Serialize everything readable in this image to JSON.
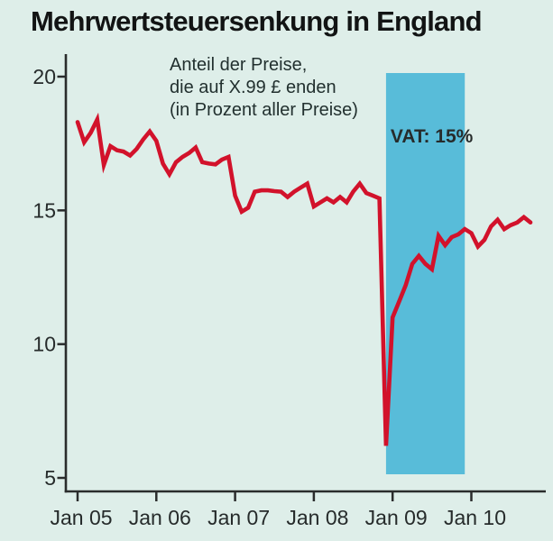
{
  "title": "Mehrwertsteuersenkung in England",
  "annotation": {
    "line1": "Anteil der Preise,",
    "line2": "die auf X.99 £ enden",
    "line3": "(in Prozent aller Preise)"
  },
  "colors": {
    "background": "#deeee9",
    "line": "#d2122b",
    "band": "#58bcd9",
    "axis": "#2a2c2c",
    "text": "#262b2b",
    "title_text": "#121414"
  },
  "chart_data": {
    "type": "line",
    "title": "Mehrwertsteuersenkung in England",
    "series_label": "Anteil der Preise, die auf X.99 £ enden (in Prozent aller Preise)",
    "x_start": "Jan 2005",
    "frequency": "monthly",
    "x_tick_labels": [
      "Jan 05",
      "Jan 06",
      "Jan 07",
      "Jan 08",
      "Jan 09",
      "Jan 10"
    ],
    "y_ticks": [
      5,
      10,
      15,
      20
    ],
    "ylim": [
      4.5,
      20.3
    ],
    "grid": false,
    "values": [
      18.3,
      17.55,
      17.9,
      18.4,
      16.7,
      17.4,
      17.25,
      17.2,
      17.05,
      17.3,
      17.65,
      17.95,
      17.6,
      16.75,
      16.35,
      16.8,
      17.0,
      17.15,
      17.35,
      16.8,
      16.75,
      16.72,
      16.9,
      17.0,
      15.55,
      14.95,
      15.1,
      15.7,
      15.75,
      15.75,
      15.72,
      15.7,
      15.5,
      15.7,
      15.85,
      16.0,
      15.15,
      15.3,
      15.45,
      15.3,
      15.5,
      15.3,
      15.7,
      16.0,
      15.65,
      15.55,
      15.45,
      6.2,
      11.0,
      11.6,
      12.2,
      13.0,
      13.3,
      13.0,
      12.8,
      14.05,
      13.7,
      14.0,
      14.1,
      14.3,
      14.15,
      13.65,
      13.9,
      14.4,
      14.65,
      14.3,
      14.45,
      14.55,
      14.75,
      14.55
    ],
    "band": {
      "label": "VAT: 15%",
      "from": "Dez 2008",
      "to": "Dez 2009",
      "start_month_index": 47,
      "end_month_index": 59,
      "color": "#58bcd9"
    }
  }
}
